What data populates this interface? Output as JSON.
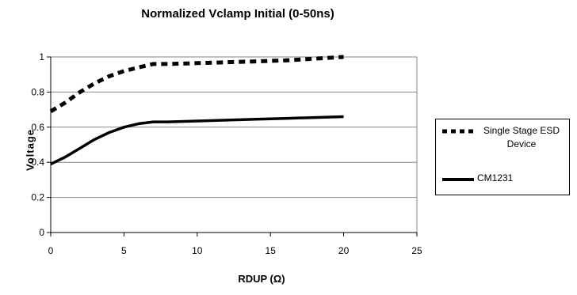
{
  "chart_data": {
    "type": "line",
    "title": "Normalized Vclamp Initial  (0-50ns)",
    "xlabel": "RDUP (Ω)",
    "ylabel": "Voltage",
    "xlim": [
      0,
      25
    ],
    "ylim": [
      0,
      1
    ],
    "xticks": [
      "0",
      "5",
      "10",
      "15",
      "20",
      "25"
    ],
    "yticks": [
      "0",
      "0.2",
      "0.4",
      "0.6",
      "0.8",
      "1"
    ],
    "grid": "horizontal",
    "legend_position": "right",
    "series": [
      {
        "name": "Single Stage ESD Device",
        "style": "dashed",
        "color": "#000000",
        "x": [
          0,
          1,
          2,
          3,
          4,
          5,
          6,
          7,
          8,
          10,
          12,
          14,
          16,
          18,
          20
        ],
        "y": [
          0.69,
          0.74,
          0.8,
          0.85,
          0.89,
          0.92,
          0.94,
          0.96,
          0.96,
          0.965,
          0.97,
          0.975,
          0.98,
          0.99,
          1.0
        ]
      },
      {
        "name": "CM1231",
        "style": "solid",
        "color": "#000000",
        "x": [
          0,
          1,
          2,
          3,
          4,
          5,
          6,
          7,
          8,
          10,
          12,
          14,
          16,
          18,
          20
        ],
        "y": [
          0.39,
          0.43,
          0.48,
          0.53,
          0.57,
          0.6,
          0.62,
          0.63,
          0.63,
          0.635,
          0.64,
          0.645,
          0.65,
          0.655,
          0.66
        ]
      }
    ]
  }
}
